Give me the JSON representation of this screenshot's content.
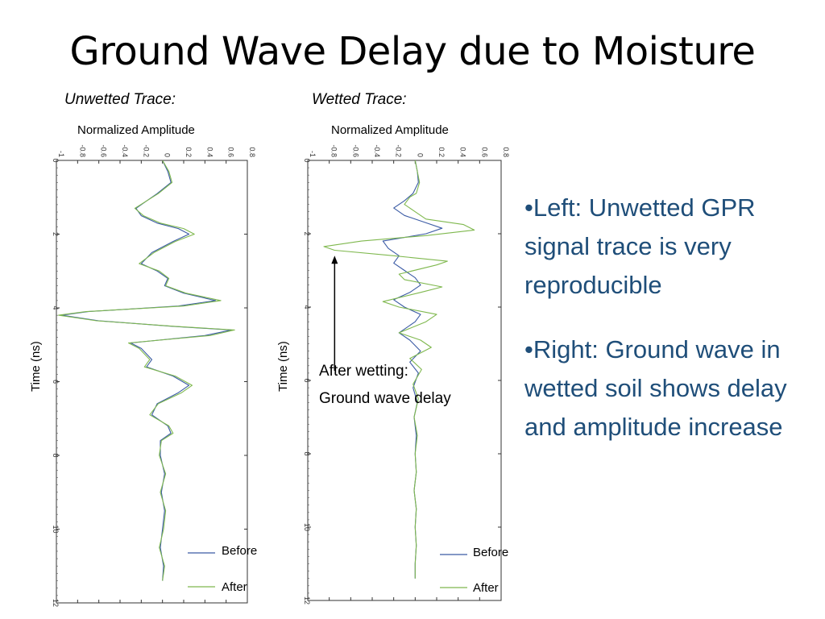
{
  "slide": {
    "title": "Ground Wave Delay due to Moisture",
    "bullets": [
      "•Left: Unwetted GPR signal trace is very reproducible",
      "•Right: Ground wave in wetted soil shows delay and amplitude increase"
    ]
  },
  "colors": {
    "before": "#3b5ba5",
    "after": "#7fb84e",
    "text": "#000000",
    "bullet_text": "#1f4e79"
  },
  "chart_data": [
    {
      "type": "line",
      "title": "Unwetted Trace:",
      "xlabel": "Normalized Amplitude",
      "ylabel": "Time (ns)",
      "orientation": "vertical-time",
      "xlim": [
        -1,
        0.8
      ],
      "ylim": [
        0,
        12
      ],
      "x_ticks": [
        "-1",
        "-0.8",
        "-0.6",
        "-0.4",
        "-0.2",
        "0",
        "0.2",
        "0.4",
        "0.6",
        "0.8"
      ],
      "y_ticks": [
        "0",
        "2",
        "4",
        "6",
        "8",
        "10",
        "12"
      ],
      "legend": [
        {
          "name": "Before"
        },
        {
          "name": "After"
        }
      ],
      "series": [
        {
          "name": "Before",
          "points": [
            [
              0,
              0
            ],
            [
              0.3,
              0.05
            ],
            [
              0.6,
              0.08
            ],
            [
              0.9,
              -0.05
            ],
            [
              1.1,
              -0.15
            ],
            [
              1.3,
              -0.25
            ],
            [
              1.5,
              -0.2
            ],
            [
              1.7,
              -0.05
            ],
            [
              1.85,
              0.15
            ],
            [
              2.0,
              0.25
            ],
            [
              2.2,
              0.1
            ],
            [
              2.5,
              -0.1
            ],
            [
              2.8,
              -0.2
            ],
            [
              3.0,
              -0.05
            ],
            [
              3.2,
              0.05
            ],
            [
              3.4,
              0.02
            ],
            [
              3.6,
              0.2
            ],
            [
              3.8,
              0.5
            ],
            [
              3.95,
              0.15
            ],
            [
              4.1,
              -0.7
            ],
            [
              4.2,
              -0.95
            ],
            [
              4.35,
              -0.6
            ],
            [
              4.5,
              0.1
            ],
            [
              4.6,
              0.65
            ],
            [
              4.75,
              0.4
            ],
            [
              4.95,
              -0.3
            ],
            [
              5.1,
              -0.2
            ],
            [
              5.4,
              -0.1
            ],
            [
              5.6,
              -0.15
            ],
            [
              5.85,
              0.1
            ],
            [
              6.1,
              0.25
            ],
            [
              6.3,
              0.15
            ],
            [
              6.6,
              -0.05
            ],
            [
              6.9,
              -0.1
            ],
            [
              7.2,
              0.05
            ],
            [
              7.4,
              0.08
            ],
            [
              7.6,
              -0.02
            ],
            [
              8.0,
              -0.02
            ],
            [
              8.5,
              0.02
            ],
            [
              9.0,
              -0.01
            ],
            [
              9.5,
              0.02
            ],
            [
              10.0,
              0.0
            ],
            [
              10.5,
              -0.02
            ],
            [
              11.0,
              0.01
            ],
            [
              11.4,
              0.0
            ]
          ]
        },
        {
          "name": "After",
          "points": [
            [
              0,
              0
            ],
            [
              0.3,
              0.06
            ],
            [
              0.6,
              0.09
            ],
            [
              0.9,
              -0.04
            ],
            [
              1.1,
              -0.15
            ],
            [
              1.3,
              -0.26
            ],
            [
              1.5,
              -0.18
            ],
            [
              1.7,
              -0.02
            ],
            [
              1.85,
              0.2
            ],
            [
              2.0,
              0.3
            ],
            [
              2.2,
              0.12
            ],
            [
              2.5,
              -0.08
            ],
            [
              2.8,
              -0.22
            ],
            [
              3.0,
              -0.03
            ],
            [
              3.2,
              0.06
            ],
            [
              3.4,
              0.03
            ],
            [
              3.6,
              0.22
            ],
            [
              3.8,
              0.55
            ],
            [
              3.95,
              0.2
            ],
            [
              4.1,
              -0.72
            ],
            [
              4.2,
              -0.98
            ],
            [
              4.35,
              -0.62
            ],
            [
              4.5,
              0.12
            ],
            [
              4.6,
              0.68
            ],
            [
              4.75,
              0.45
            ],
            [
              4.95,
              -0.32
            ],
            [
              5.1,
              -0.22
            ],
            [
              5.4,
              -0.12
            ],
            [
              5.6,
              -0.17
            ],
            [
              5.85,
              0.12
            ],
            [
              6.1,
              0.28
            ],
            [
              6.3,
              0.18
            ],
            [
              6.6,
              -0.04
            ],
            [
              6.9,
              -0.12
            ],
            [
              7.2,
              0.06
            ],
            [
              7.4,
              0.1
            ],
            [
              7.6,
              -0.01
            ],
            [
              8.0,
              -0.03
            ],
            [
              8.5,
              0.03
            ],
            [
              9.0,
              -0.02
            ],
            [
              9.5,
              0.03
            ],
            [
              10.0,
              0.01
            ],
            [
              10.5,
              -0.03
            ],
            [
              11.0,
              0.02
            ],
            [
              11.4,
              0.0
            ]
          ]
        }
      ]
    },
    {
      "type": "line",
      "title": "Wetted Trace:",
      "xlabel": "Normalized Amplitude",
      "ylabel": "Time (ns)",
      "orientation": "vertical-time",
      "xlim": [
        -1,
        0.8
      ],
      "ylim": [
        0,
        12
      ],
      "x_ticks": [
        "-1",
        "-0.8",
        "-0.6",
        "-0.4",
        "-0.2",
        "0",
        "0.2",
        "0.4",
        "0.6",
        "0.8"
      ],
      "y_ticks": [
        "0",
        "2",
        "4",
        "6",
        "8",
        "10",
        "12"
      ],
      "legend": [
        {
          "name": "Before"
        },
        {
          "name": "After"
        }
      ],
      "annotation": {
        "line1": "After wetting:",
        "line2": "Ground wave delay",
        "x": -0.75,
        "y": 2.6
      },
      "series": [
        {
          "name": "Before",
          "points": [
            [
              0,
              0
            ],
            [
              0.3,
              0.02
            ],
            [
              0.6,
              0.03
            ],
            [
              0.9,
              -0.02
            ],
            [
              1.1,
              -0.1
            ],
            [
              1.3,
              -0.2
            ],
            [
              1.5,
              -0.1
            ],
            [
              1.7,
              0.1
            ],
            [
              1.85,
              0.25
            ],
            [
              2.0,
              0.1
            ],
            [
              2.1,
              -0.1
            ],
            [
              2.2,
              -0.3
            ],
            [
              2.4,
              -0.25
            ],
            [
              2.6,
              -0.15
            ],
            [
              2.8,
              -0.2
            ],
            [
              3.0,
              -0.1
            ],
            [
              3.2,
              0.0
            ],
            [
              3.4,
              0.05
            ],
            [
              3.6,
              -0.05
            ],
            [
              3.8,
              -0.2
            ],
            [
              4.0,
              -0.1
            ],
            [
              4.2,
              0.05
            ],
            [
              4.4,
              0.0
            ],
            [
              4.7,
              -0.15
            ],
            [
              4.9,
              -0.05
            ],
            [
              5.2,
              0.05
            ],
            [
              5.5,
              -0.05
            ],
            [
              5.8,
              0.03
            ],
            [
              6.2,
              -0.02
            ],
            [
              6.6,
              0.02
            ],
            [
              7.0,
              -0.01
            ],
            [
              7.5,
              0.01
            ],
            [
              8.0,
              0.0
            ],
            [
              8.5,
              0.01
            ],
            [
              9.0,
              -0.01
            ],
            [
              9.5,
              0.01
            ],
            [
              10.0,
              0.0
            ],
            [
              10.5,
              0.01
            ],
            [
              11.0,
              0.0
            ],
            [
              11.4,
              0.0
            ]
          ]
        },
        {
          "name": "After",
          "points": [
            [
              0,
              0
            ],
            [
              0.3,
              0.02
            ],
            [
              0.6,
              0.04
            ],
            [
              0.9,
              0.01
            ],
            [
              1.0,
              -0.05
            ],
            [
              1.2,
              -0.1
            ],
            [
              1.4,
              0.0
            ],
            [
              1.6,
              0.1
            ],
            [
              1.75,
              0.45
            ],
            [
              1.9,
              0.55
            ],
            [
              2.05,
              0.1
            ],
            [
              2.2,
              -0.5
            ],
            [
              2.35,
              -0.85
            ],
            [
              2.45,
              -0.75
            ],
            [
              2.6,
              -0.2
            ],
            [
              2.75,
              0.3
            ],
            [
              2.85,
              0.2
            ],
            [
              3.1,
              -0.15
            ],
            [
              3.25,
              -0.1
            ],
            [
              3.45,
              0.25
            ],
            [
              3.6,
              0.05
            ],
            [
              3.85,
              -0.3
            ],
            [
              4.0,
              -0.15
            ],
            [
              4.2,
              0.2
            ],
            [
              4.4,
              0.1
            ],
            [
              4.7,
              -0.15
            ],
            [
              4.9,
              0.05
            ],
            [
              5.1,
              0.15
            ],
            [
              5.4,
              -0.05
            ],
            [
              5.7,
              0.06
            ],
            [
              6.1,
              -0.02
            ],
            [
              6.5,
              0.03
            ],
            [
              7.0,
              -0.01
            ],
            [
              7.5,
              0.02
            ],
            [
              8.0,
              0.0
            ],
            [
              8.5,
              0.01
            ],
            [
              9.0,
              -0.01
            ],
            [
              9.5,
              0.01
            ],
            [
              10.0,
              0.0
            ],
            [
              10.5,
              0.01
            ],
            [
              11.0,
              0.0
            ],
            [
              11.4,
              0.0
            ]
          ]
        }
      ]
    }
  ]
}
